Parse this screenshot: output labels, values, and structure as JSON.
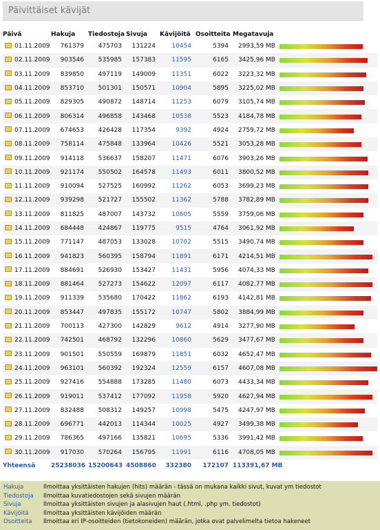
{
  "title": "Päivittäiset kävijät",
  "headers": [
    "Päivä",
    "Hakuja",
    "Tiedostoja",
    "Sivuja",
    "Kävijöitä",
    "Osoitteita",
    "Megatavuja"
  ],
  "rows": [
    {
      "date": "01.11.2009",
      "hits": "761379",
      "files": "475703",
      "pages": "131224",
      "visitors": "10454",
      "sites": "5394",
      "mb": "2993,59 MB",
      "bar": 0.85
    },
    {
      "date": "02.11.2009",
      "hits": "903546",
      "files": "535985",
      "pages": "157383",
      "visitors": "11595",
      "sites": "6165",
      "mb": "3425,96 MB",
      "bar": 0.9
    },
    {
      "date": "03.11.2009",
      "hits": "839850",
      "files": "497119",
      "pages": "149009",
      "visitors": "11351",
      "sites": "6022",
      "mb": "3223,32 MB",
      "bar": 0.89
    },
    {
      "date": "04.11.2009",
      "hits": "853710",
      "files": "501301",
      "pages": "150571",
      "visitors": "10904",
      "sites": "5895",
      "mb": "3225,02 MB",
      "bar": 0.86
    },
    {
      "date": "05.11.2009",
      "hits": "829305",
      "files": "490872",
      "pages": "148714",
      "visitors": "11253",
      "sites": "6079",
      "mb": "3105,74 MB",
      "bar": 0.87
    },
    {
      "date": "06.11.2009",
      "hits": "806314",
      "files": "496858",
      "pages": "143468",
      "visitors": "10538",
      "sites": "5523",
      "mb": "4184,78 MB",
      "bar": 0.84
    },
    {
      "date": "07.11.2009",
      "hits": "674653",
      "files": "426428",
      "pages": "117354",
      "visitors": "9392",
      "sites": "4924",
      "mb": "2759,72 MB",
      "bar": 0.76
    },
    {
      "date": "08.11.2009",
      "hits": "758114",
      "files": "475848",
      "pages": "133964",
      "visitors": "10426",
      "sites": "5521",
      "mb": "3053,28 MB",
      "bar": 0.84
    },
    {
      "date": "09.11.2009",
      "hits": "914118",
      "files": "536637",
      "pages": "158207",
      "visitors": "11471",
      "sites": "6076",
      "mb": "3903,26 MB",
      "bar": 0.9
    },
    {
      "date": "10.11.2009",
      "hits": "921174",
      "files": "550502",
      "pages": "164578",
      "visitors": "11493",
      "sites": "6011",
      "mb": "3800,52 MB",
      "bar": 0.91
    },
    {
      "date": "11.11.2009",
      "hits": "910094",
      "files": "527525",
      "pages": "160992",
      "visitors": "11262",
      "sites": "6053",
      "mb": "3699,23 MB",
      "bar": 0.91
    },
    {
      "date": "12.11.2009",
      "hits": "939298",
      "files": "521727",
      "pages": "155502",
      "visitors": "11362",
      "sites": "5788",
      "mb": "3782,89 MB",
      "bar": 0.91
    },
    {
      "date": "13.11.2009",
      "hits": "811825",
      "files": "487007",
      "pages": "143732",
      "visitors": "10605",
      "sites": "5559",
      "mb": "3759,06 MB",
      "bar": 0.86
    },
    {
      "date": "14.11.2009",
      "hits": "684448",
      "files": "424867",
      "pages": "119775",
      "visitors": "9515",
      "sites": "4764",
      "mb": "3061,92 MB",
      "bar": 0.76
    },
    {
      "date": "15.11.2009",
      "hits": "771147",
      "files": "487053",
      "pages": "133028",
      "visitors": "10702",
      "sites": "5515",
      "mb": "3490,74 MB",
      "bar": 0.86
    },
    {
      "date": "16.11.2009",
      "hits": "941823",
      "files": "560395",
      "pages": "158794",
      "visitors": "11891",
      "sites": "6171",
      "mb": "4214,51 MB",
      "bar": 0.95
    },
    {
      "date": "17.11.2009",
      "hits": "884691",
      "files": "526930",
      "pages": "153427",
      "visitors": "11431",
      "sites": "5956",
      "mb": "4074,33 MB",
      "bar": 0.91
    },
    {
      "date": "18.11.2009",
      "hits": "881464",
      "files": "527273",
      "pages": "154622",
      "visitors": "12097",
      "sites": "6117",
      "mb": "4082,77 MB",
      "bar": 0.95
    },
    {
      "date": "19.11.2009",
      "hits": "911339",
      "files": "535680",
      "pages": "170422",
      "visitors": "11862",
      "sites": "6193",
      "mb": "4142,81 MB",
      "bar": 0.94
    },
    {
      "date": "20.11.2009",
      "hits": "853447",
      "files": "497835",
      "pages": "155172",
      "visitors": "10747",
      "sites": "5802",
      "mb": "3884,99 MB",
      "bar": 0.86
    },
    {
      "date": "21.11.2009",
      "hits": "700113",
      "files": "427300",
      "pages": "142829",
      "visitors": "9612",
      "sites": "4914",
      "mb": "3277,90 MB",
      "bar": 0.77
    },
    {
      "date": "22.11.2009",
      "hits": "742501",
      "files": "468792",
      "pages": "132296",
      "visitors": "10860",
      "sites": "5629",
      "mb": "3477,67 MB",
      "bar": 0.86
    },
    {
      "date": "23.11.2009",
      "hits": "901501",
      "files": "550559",
      "pages": "169879",
      "visitors": "11851",
      "sites": "6032",
      "mb": "4652,47 MB",
      "bar": 0.94
    },
    {
      "date": "24.11.2009",
      "hits": "963101",
      "files": "560392",
      "pages": "192324",
      "visitors": "12559",
      "sites": "6157",
      "mb": "4607,08 MB",
      "bar": 1.0
    },
    {
      "date": "25.11.2009",
      "hits": "927416",
      "files": "554888",
      "pages": "173285",
      "visitors": "11480",
      "sites": "6073",
      "mb": "4433,34 MB",
      "bar": 0.91
    },
    {
      "date": "26.11.2009",
      "hits": "919011",
      "files": "537412",
      "pages": "177092",
      "visitors": "11958",
      "sites": "5920",
      "mb": "4627,94 MB",
      "bar": 0.95
    },
    {
      "date": "27.11.2009",
      "hits": "832488",
      "files": "508312",
      "pages": "149257",
      "visitors": "10998",
      "sites": "5475",
      "mb": "4247,97 MB",
      "bar": 0.87
    },
    {
      "date": "28.11.2009",
      "hits": "696771",
      "files": "442013",
      "pages": "114344",
      "visitors": "10025",
      "sites": "4927",
      "mb": "3499,38 MB",
      "bar": 0.8
    },
    {
      "date": "29.11.2009",
      "hits": "786365",
      "files": "497166",
      "pages": "135821",
      "visitors": "10695",
      "sites": "5336",
      "mb": "3991,42 MB",
      "bar": 0.85
    },
    {
      "date": "30.11.2009",
      "hits": "917030",
      "files": "570264",
      "pages": "156795",
      "visitors": "11991",
      "sites": "6116",
      "mb": "4708,05 MB",
      "bar": 0.95
    }
  ],
  "totals": {
    "label": "Yhteensä",
    "hits": "25238036",
    "files": "15200643",
    "pages": "4508860",
    "visitors": "332380",
    "sites": "172107",
    "mb": "113391,67 MB"
  },
  "legend": [
    {
      "term": "Hakuja",
      "desc": "Ilmoittaa yksittäisten hakujen (hits) määrän - tässä on mukana kaikki sivut, kuvat ym tiedostot"
    },
    {
      "term": "Tiedostoja",
      "desc": "Ilmoittaa kuvatiedostojen sekä sivujen määrän"
    },
    {
      "term": "Sivuja",
      "desc": "Ilmoittaa yksittäisten sivujen ja alasivujen haut (.html, .php ym. tiedostot)"
    },
    {
      "term": "Kävijöitä",
      "desc": "Ilmoittaa yksittäisten kävijöiden määrän"
    },
    {
      "term": "Osoitteita",
      "desc": "Ilmoittaa eri IP-osoitteiden (tietokoneiden) määrän, jotka ovat palvelimelta tietoa hakeneet"
    }
  ],
  "colors": {
    "link": "#2a5aa8",
    "legend_bg": "#dedeb4",
    "title_bg": "#e4e4e4"
  },
  "icons": {
    "row_icon": "folder-icon"
  }
}
